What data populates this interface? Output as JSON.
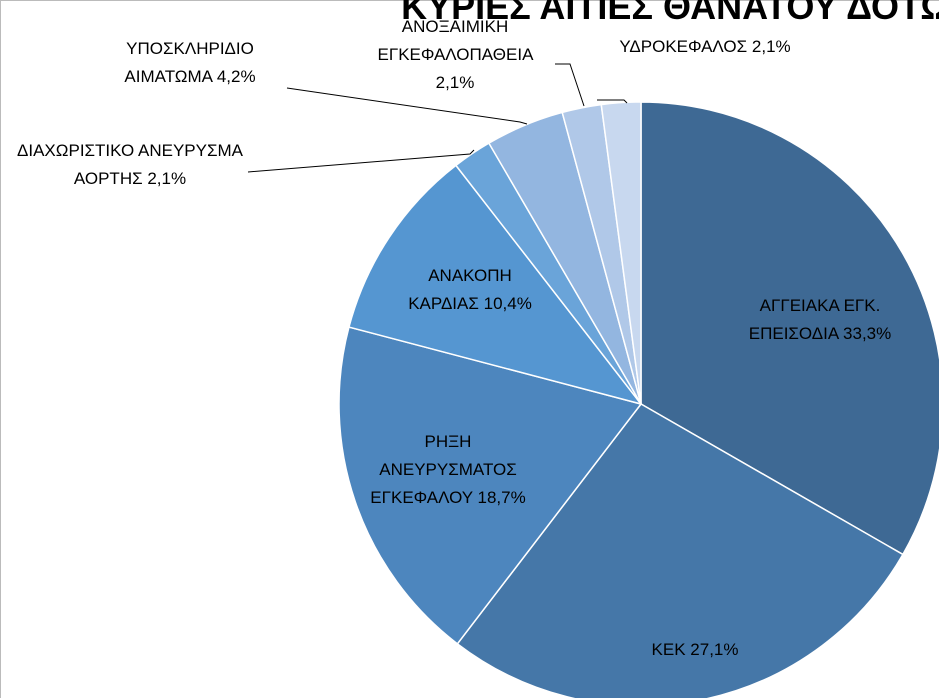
{
  "chart_data": {
    "type": "pie",
    "title": "ΚΥΡΙΕΣ ΑΙΤΙΕΣ ΘΑΝΑΤΟΥ ΔΟΤΩΝ ΟΡΓ",
    "categories": [
      "ΑΓΓΕΙΑΚΑ ΕΓΚ. ΕΠΕΙΣΟΔΙΑ",
      "ΚΕΚ",
      "ΡΗΞΗ ΑΝΕΥΡΥΣΜΑΤΟΣ ΕΓΚΕΦΑΛΟΥ",
      "ΑΝΑΚΟΠΗ ΚΑΡΔΙΑΣ",
      "ΔΙΑΧΩΡΙΣΤΙΚΟ ΑΝΕΥΡΥΣΜΑ ΑΟΡΤΗΣ",
      "ΥΠΟΣΚΛΗΡΙΔΙΟ ΑΙΜΑΤΩΜΑ",
      "ΑΝΟΞΑΙΜΙΚΗ ΕΓΚΕΦΑΛΟΠΑΘΕΙΑ",
      "ΥΔΡΟΚΕΦΑΛΟΣ"
    ],
    "values": [
      33.3,
      27.1,
      18.7,
      10.4,
      2.1,
      4.2,
      2.1,
      2.1
    ],
    "value_labels": [
      "33,3%",
      "27,1%",
      "18,7%",
      "10,4%",
      "2,1%",
      "4,2%",
      "2,1%",
      "2,1%"
    ],
    "colors": [
      "#3e6994",
      "#4577a8",
      "#4d86be",
      "#5596d1",
      "#6aa4d9",
      "#93b6e0",
      "#b0c8e8",
      "#c8d8ef"
    ]
  }
}
